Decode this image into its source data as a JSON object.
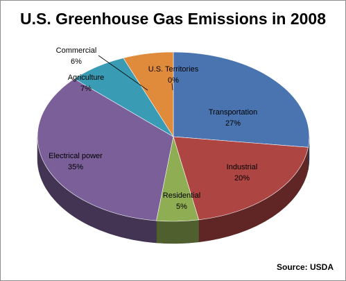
{
  "chart_data": {
    "type": "pie",
    "title": "U.S. Greenhouse Gas Emissions in 2008",
    "source_note": "Source: USDA",
    "slices": [
      {
        "label": "Transportation",
        "value": 27,
        "pct_label": "27%",
        "color": "#4a74b0"
      },
      {
        "label": "Industrial",
        "value": 20,
        "pct_label": "20%",
        "color": "#ad4543"
      },
      {
        "label": "Residential",
        "value": 5,
        "pct_label": "5%",
        "color": "#8fad52"
      },
      {
        "label": "Electrical power",
        "value": 35,
        "pct_label": "35%",
        "color": "#7a5f99"
      },
      {
        "label": "Agriculture",
        "value": 7,
        "pct_label": "7%",
        "color": "#3a9bb4"
      },
      {
        "label": "Commercial",
        "value": 6,
        "pct_label": "6%",
        "color": "#e08a3c"
      },
      {
        "label": "U.S. Territories",
        "value": 0,
        "pct_label": "0%",
        "color": "#93a9cf"
      }
    ]
  }
}
